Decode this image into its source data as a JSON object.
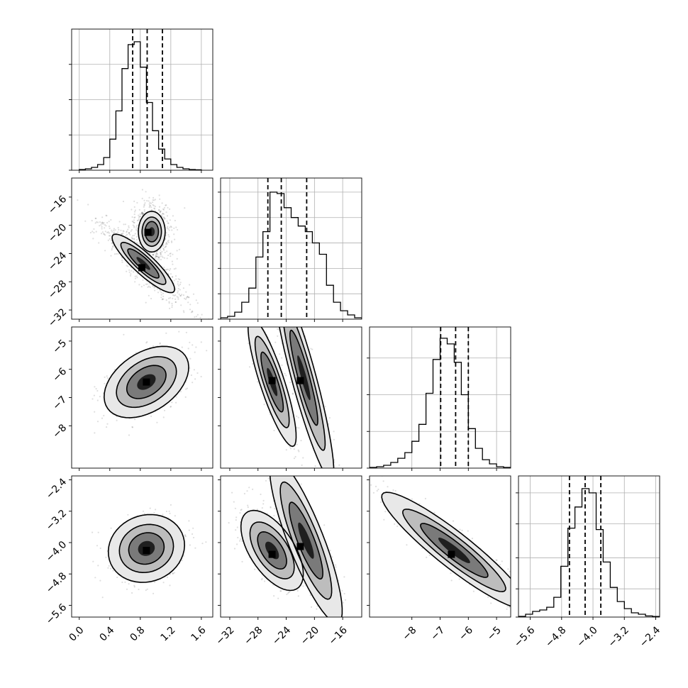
{
  "chart_data": {
    "type": "corner",
    "n_params": 4,
    "title": "",
    "grid": true,
    "params": [
      {
        "range": [
          -0.1,
          1.75
        ],
        "ticks": [
          0.0,
          0.4,
          0.8,
          1.2,
          1.6
        ],
        "tick_labels": [
          "0.0",
          "0.4",
          "0.8",
          "1.2",
          "1.6"
        ],
        "mean": 0.89,
        "sd": 0.18,
        "quantiles": [
          0.7,
          0.89,
          1.09
        ]
      },
      {
        "range": [
          -33.3,
          -13.3
        ],
        "ticks": [
          -32,
          -28,
          -24,
          -20,
          -16
        ],
        "tick_labels": [
          "−32",
          "−28",
          "−24",
          "−20",
          "−16"
        ],
        "quantiles": [
          -26.6,
          -24.7,
          -21.1
        ]
      },
      {
        "range": [
          -9.5,
          -4.5
        ],
        "ticks": [
          -8,
          -7,
          -6,
          -5
        ],
        "tick_labels": [
          "−8",
          "−7",
          "−6",
          "−5"
        ],
        "mean": -6.45,
        "sd": 0.48,
        "quantiles": [
          -6.98,
          -6.45,
          -6.0
        ]
      },
      {
        "range": [
          -5.9,
          -2.3
        ],
        "ticks": [
          -5.6,
          -4.8,
          -4.0,
          -3.2,
          -2.4
        ],
        "tick_labels": [
          "−5.6",
          "−4.8",
          "−4.0",
          "−3.2",
          "−2.4"
        ],
        "mean": -4.2,
        "sd": 0.33,
        "quantiles": [
          -4.6,
          -4.2,
          -3.8
        ]
      }
    ],
    "histograms": [
      {
        "param": 0,
        "ylim": [
          0,
          1.0
        ],
        "y_ticks": [
          0.25,
          0.5,
          0.75
        ],
        "edges": [
          0.0,
          0.08,
          0.16,
          0.24,
          0.32,
          0.4,
          0.48,
          0.56,
          0.64,
          0.72,
          0.8,
          0.88,
          0.96,
          1.04,
          1.12,
          1.2,
          1.28,
          1.36,
          1.44,
          1.52,
          1.6
        ],
        "counts": [
          0.005,
          0.01,
          0.02,
          0.04,
          0.09,
          0.22,
          0.42,
          0.72,
          0.89,
          0.91,
          0.73,
          0.48,
          0.28,
          0.15,
          0.08,
          0.04,
          0.02,
          0.01,
          0.005,
          0.003
        ]
      },
      {
        "param": 1,
        "ylim": [
          0,
          1.0
        ],
        "y_ticks": [
          0.18,
          0.36,
          0.54,
          0.72,
          0.9
        ],
        "edges": [
          -33.3,
          -32.3,
          -31.3,
          -30.3,
          -29.3,
          -28.3,
          -27.3,
          -26.3,
          -25.3,
          -24.3,
          -23.3,
          -22.3,
          -21.3,
          -20.3,
          -19.3,
          -18.3,
          -17.3,
          -16.3,
          -15.3,
          -14.3,
          -13.3
        ],
        "counts": [
          0.01,
          0.02,
          0.05,
          0.12,
          0.22,
          0.44,
          0.62,
          0.9,
          0.89,
          0.79,
          0.72,
          0.66,
          0.62,
          0.54,
          0.46,
          0.24,
          0.12,
          0.06,
          0.03,
          0.01
        ]
      },
      {
        "param": 2,
        "ylim": [
          0,
          1.0
        ],
        "y_ticks": [
          0.26,
          0.52,
          0.78
        ],
        "edges": [
          -9.5,
          -9.25,
          -9.0,
          -8.75,
          -8.5,
          -8.25,
          -8.0,
          -7.75,
          -7.5,
          -7.25,
          -7.0,
          -6.75,
          -6.5,
          -6.25,
          -6.0,
          -5.75,
          -5.5,
          -5.25,
          -5.0,
          -4.75,
          -4.5
        ],
        "counts": [
          0.005,
          0.01,
          0.02,
          0.04,
          0.07,
          0.11,
          0.19,
          0.31,
          0.53,
          0.77,
          0.92,
          0.88,
          0.75,
          0.52,
          0.28,
          0.14,
          0.06,
          0.03,
          0.01,
          0.005
        ]
      },
      {
        "param": 3,
        "ylim": [
          0,
          1.0
        ],
        "y_ticks": [
          0.2,
          0.42,
          0.66,
          0.88
        ],
        "edges": [
          -5.9,
          -5.72,
          -5.54,
          -5.36,
          -5.18,
          -5.0,
          -4.82,
          -4.64,
          -4.46,
          -4.28,
          -4.1,
          -3.92,
          -3.74,
          -3.56,
          -3.38,
          -3.2,
          -3.02,
          -2.84,
          -2.66,
          -2.48,
          -2.3
        ],
        "counts": [
          0.005,
          0.02,
          0.04,
          0.05,
          0.07,
          0.14,
          0.36,
          0.63,
          0.78,
          0.91,
          0.88,
          0.62,
          0.39,
          0.21,
          0.11,
          0.06,
          0.03,
          0.02,
          0.008,
          0.004
        ]
      }
    ],
    "pairs": [
      {
        "x": 0,
        "y": 1,
        "blobs": [
          {
            "cx": 0.84,
            "cy": -25.4,
            "sx": 0.12,
            "sy": 2.6,
            "angle": 5,
            "peak": [
              0.82,
              -26.0
            ]
          },
          {
            "cx": 0.95,
            "cy": -20.9,
            "sx": 0.11,
            "sy": 1.8,
            "angle": 0,
            "peak": [
              0.9,
              -21.0
            ]
          }
        ],
        "levels": [
          {
            "w": 1.0,
            "fill": "#e8e8e8"
          },
          {
            "w": 0.72,
            "fill": "#bdbdbd"
          },
          {
            "w": 0.5,
            "fill": "#7a7a7a"
          },
          {
            "w": 0.22,
            "fill": "#242424"
          }
        ]
      },
      {
        "x": 0,
        "y": 2,
        "blobs": [
          {
            "cx": 0.88,
            "cy": -6.45,
            "sx": 0.2,
            "sy": 0.52,
            "angle": -12,
            "peak": [
              0.88,
              -6.45
            ]
          }
        ],
        "levels": [
          {
            "w": 1.55,
            "fill": "#e8e8e8"
          },
          {
            "w": 1.1,
            "fill": "#bdbdbd"
          },
          {
            "w": 0.72,
            "fill": "#7a7a7a"
          },
          {
            "w": 0.34,
            "fill": "#1f1f1f"
          }
        ]
      },
      {
        "x": 1,
        "y": 2,
        "blobs": [
          {
            "cx": -26.0,
            "cy": -6.45,
            "sx": 1.6,
            "sy": 0.42,
            "angle": -32,
            "peak": [
              -26.0,
              -6.4
            ]
          },
          {
            "cx": -21.5,
            "cy": -6.3,
            "sx": 2.2,
            "sy": 0.48,
            "angle": -40,
            "peak": [
              -22.0,
              -6.4
            ]
          }
        ],
        "levels": [
          {
            "w": 1.55,
            "fill": "#e8e8e8"
          },
          {
            "w": 1.1,
            "fill": "#bdbdbd"
          },
          {
            "w": 0.72,
            "fill": "#7a7a7a"
          },
          {
            "w": 0.34,
            "fill": "#1f1f1f"
          }
        ]
      },
      {
        "x": 0,
        "y": 3,
        "blobs": [
          {
            "cx": 0.88,
            "cy": -4.15,
            "sx": 0.2,
            "sy": 0.35,
            "angle": -5,
            "peak": [
              0.88,
              -4.2
            ]
          }
        ],
        "levels": [
          {
            "w": 1.55,
            "fill": "#e8e8e8"
          },
          {
            "w": 1.1,
            "fill": "#bdbdbd"
          },
          {
            "w": 0.72,
            "fill": "#7a7a7a"
          },
          {
            "w": 0.34,
            "fill": "#1f1f1f"
          }
        ]
      },
      {
        "x": 1,
        "y": 3,
        "blobs": [
          {
            "cx": -26.0,
            "cy": -4.2,
            "sx": 1.8,
            "sy": 0.33,
            "angle": -8,
            "peak": [
              -26.0,
              -4.3
            ]
          },
          {
            "cx": -21.2,
            "cy": -3.95,
            "sx": 2.2,
            "sy": 0.42,
            "angle": -20,
            "peak": [
              -22.0,
              -4.1
            ]
          }
        ],
        "levels": [
          {
            "w": 1.55,
            "fill": "#e8e8e8"
          },
          {
            "w": 1.1,
            "fill": "#bdbdbd"
          },
          {
            "w": 0.72,
            "fill": "#7a7a7a"
          },
          {
            "w": 0.34,
            "fill": "#1f1f1f"
          }
        ]
      },
      {
        "x": 2,
        "y": 3,
        "blobs": [
          {
            "cx": -6.5,
            "cy": -4.2,
            "sx": 1.18,
            "sy": 0.2,
            "angle": -29,
            "peak": [
              -6.6,
              -4.3
            ]
          }
        ],
        "levels": [
          {
            "w": 1.55,
            "fill": "#e8e8e8"
          },
          {
            "w": 1.1,
            "fill": "#bdbdbd"
          },
          {
            "w": 0.72,
            "fill": "#7a7a7a"
          },
          {
            "w": 0.34,
            "fill": "#1f1f1f"
          }
        ]
      }
    ]
  }
}
